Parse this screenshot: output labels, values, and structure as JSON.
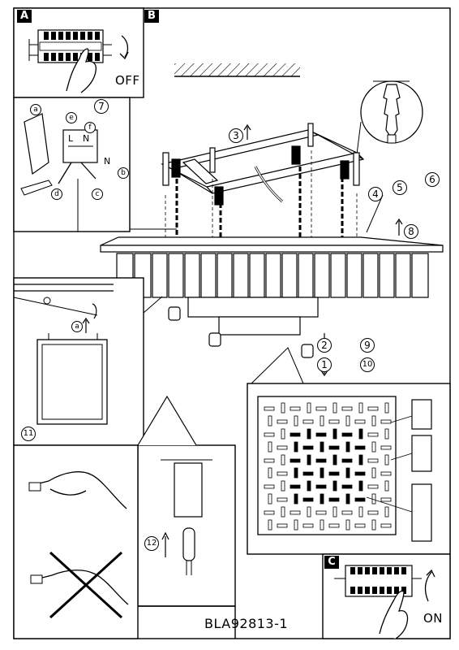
{
  "panels": {
    "a": {
      "letter": "A",
      "caption": "OFF"
    },
    "b": {
      "letter": "B"
    },
    "c": {
      "letter": "C",
      "caption": "ON"
    }
  },
  "steps": {
    "s2": "2",
    "s3": "3",
    "s4": "4",
    "s5": "5",
    "s6": "6",
    "s7": "7",
    "s8": "8",
    "s9": "9",
    "s10": "10",
    "s1": "1",
    "s11": "11",
    "s12": "12"
  },
  "wiring": {
    "l": "L",
    "n_top": "N",
    "n_side": "N",
    "a": "a",
    "b": "b",
    "c": "c",
    "d": "d",
    "e": "e",
    "f": "f"
  },
  "hang_step": "a",
  "model_code": "BLA92813-1"
}
